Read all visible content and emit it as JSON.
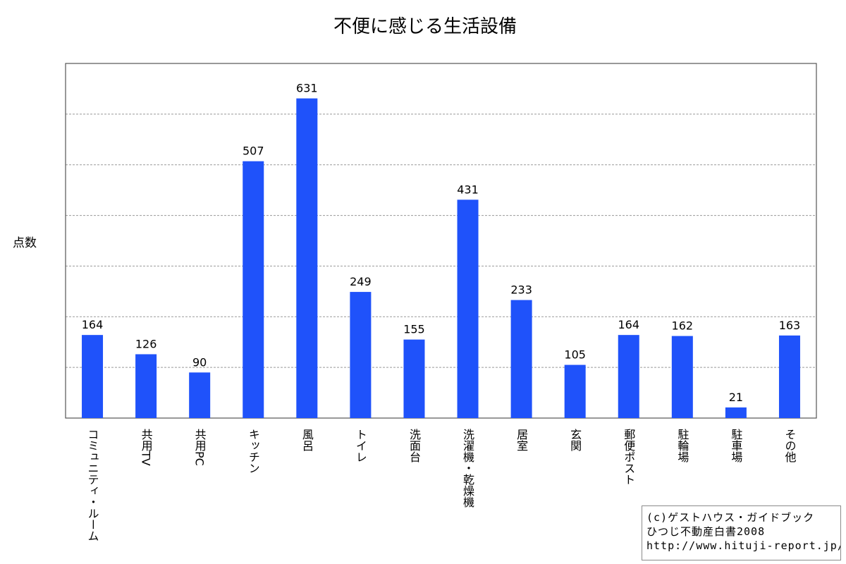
{
  "chart_data": {
    "type": "bar",
    "title": "不便に感じる生活設備",
    "ylabel": "点数",
    "xlabel": "",
    "categories": [
      "コミュニティ・ルーム",
      "共用TV",
      "共用PC",
      "キッチン",
      "風呂",
      "トイレ",
      "洗面台",
      "洗濯機・乾燥機",
      "居室",
      "玄関",
      "郵便ポスト",
      "駐輪場",
      "駐車場",
      "その他"
    ],
    "values": [
      164,
      126,
      90,
      507,
      631,
      249,
      155,
      431,
      233,
      105,
      164,
      162,
      21,
      163
    ],
    "ylim": [
      0,
      700
    ],
    "ytick_step": 100,
    "grid": true,
    "grid_style": "dashed horizontal",
    "y_tick_labels_shown": false,
    "legend": "none",
    "colors": {
      "bar": "#1f52fa",
      "grid": "#999999",
      "frame": "#555555"
    }
  },
  "credit": {
    "line1": "(c)ゲストハウス・ガイドブック",
    "line2": "ひつじ不動産白書2008",
    "line3": "http://www.hituji-report.jp/"
  }
}
